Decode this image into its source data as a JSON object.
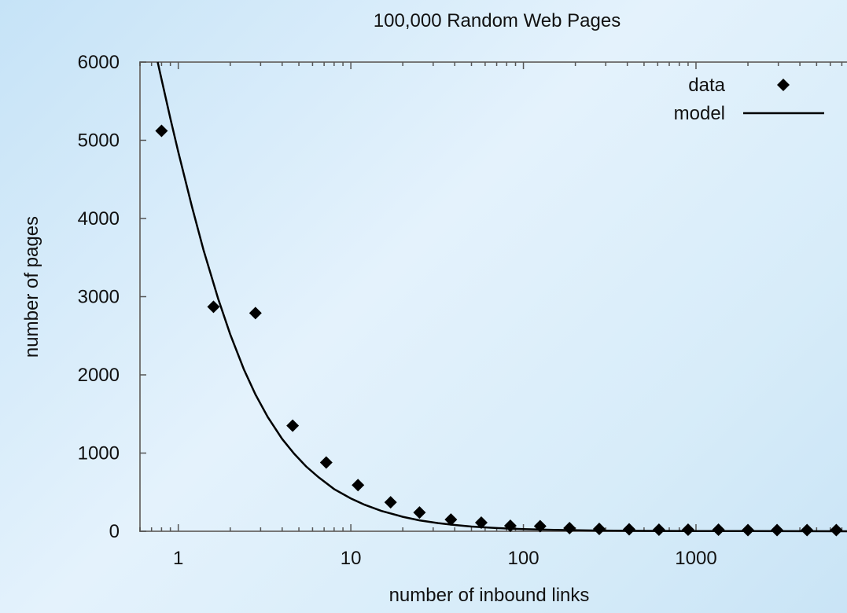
{
  "chart_data": {
    "type": "scatter",
    "title": "100,000 Random Web Pages",
    "xlabel": "number of inbound links",
    "ylabel": "number of pages",
    "x_scale": "log",
    "xlim": [
      0.6,
      7500
    ],
    "ylim": [
      0,
      6000
    ],
    "x_ticks": [
      1,
      10,
      100,
      1000
    ],
    "x_tick_labels": [
      "1",
      "10",
      "100",
      "1000"
    ],
    "y_ticks": [
      0,
      1000,
      2000,
      3000,
      4000,
      5000,
      6000
    ],
    "y_tick_labels": [
      "0",
      "1000",
      "2000",
      "3000",
      "4000",
      "5000",
      "6000"
    ],
    "grid": false,
    "legend_position": "top-right",
    "series": [
      {
        "name": "data",
        "style": "points",
        "x": [
          0.8,
          1.6,
          2.8,
          4.6,
          7.2,
          11,
          17,
          25,
          38,
          57,
          84,
          125,
          185,
          275,
          410,
          610,
          900,
          1350,
          2000,
          2950,
          4400,
          6500
        ],
        "y": [
          5120,
          2870,
          2790,
          1350,
          880,
          590,
          370,
          240,
          150,
          110,
          70,
          65,
          40,
          30,
          25,
          20,
          20,
          20,
          15,
          15,
          15,
          15
        ]
      },
      {
        "name": "model",
        "style": "line",
        "x": [
          0.76,
          0.8,
          0.9,
          1.0,
          1.2,
          1.4,
          1.7,
          2.0,
          2.4,
          2.8,
          3.3,
          4.0,
          4.7,
          5.5,
          6.5,
          8.0,
          10,
          12,
          15,
          20,
          25,
          32,
          40,
          50,
          65,
          80,
          100,
          150,
          250,
          500,
          1000,
          2000,
          4000,
          7500
        ],
        "y": [
          6000,
          5780,
          5280,
          4850,
          4150,
          3600,
          2980,
          2520,
          2070,
          1750,
          1460,
          1180,
          990,
          830,
          690,
          540,
          420,
          340,
          260,
          185,
          140,
          105,
          80,
          60,
          45,
          35,
          28,
          18,
          10,
          5,
          3,
          2,
          1,
          0.5
        ]
      }
    ]
  }
}
